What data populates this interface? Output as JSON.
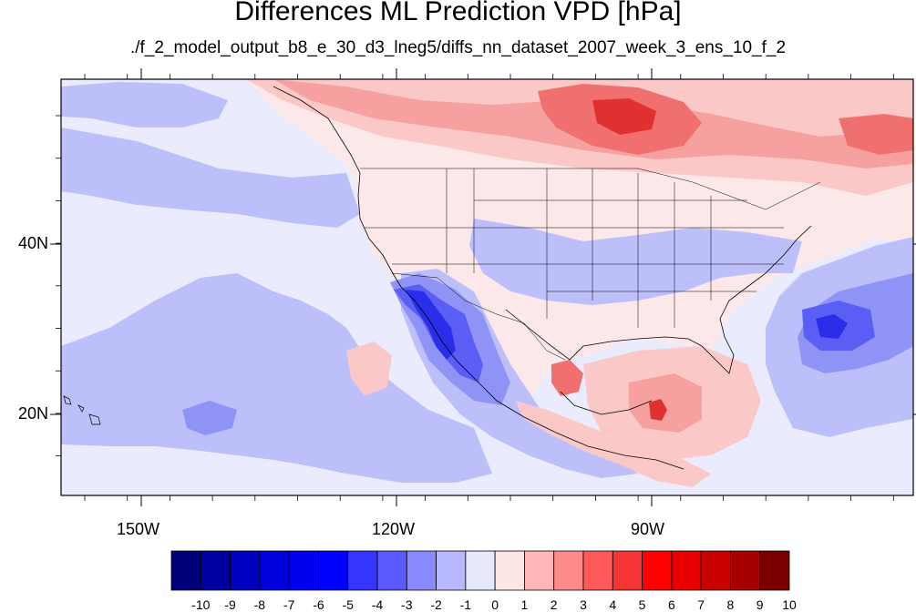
{
  "header": {
    "title": "Differences ML Prediction VPD [hPa]",
    "subtitle": "./f_2_model_output_b8_e_30_d3_lneg5/diffs_nn_dataset_2007_week_3_ens_10_f_2"
  },
  "axes": {
    "lat_labels": [
      "40N",
      "20N"
    ],
    "lon_labels": [
      "150W",
      "120W",
      "90W"
    ]
  },
  "colorbar": {
    "labels": [
      "-10",
      "-9",
      "-8",
      "-7",
      "-6",
      "-5",
      "-4",
      "-3",
      "-2",
      "-1",
      "0",
      "1",
      "2",
      "3",
      "4",
      "5",
      "6",
      "7",
      "8",
      "9",
      "10"
    ],
    "colors": [
      "#00007a",
      "#0000a0",
      "#0000c0",
      "#0000dc",
      "#0000f0",
      "#0000ff",
      "#3535ff",
      "#5a5aff",
      "#8a8aff",
      "#b8b8ff",
      "#e6e8fb",
      "#fde6e6",
      "#ffb6b6",
      "#ff8a8a",
      "#ff5a5a",
      "#f53535",
      "#ff0000",
      "#e60000",
      "#c80000",
      "#a60000",
      "#7a0000"
    ]
  },
  "palette": {
    "ocean_base": "#eaebfc",
    "land_base": "#fce8e8",
    "light_blue": "#bcbffa",
    "mid_blue": "#8f93f5",
    "strong_blue": "#5a5ef5",
    "deep_blue": "#2a2ee8",
    "light_red": "#fbc8c8",
    "mid_red": "#f6a0a0",
    "strong_red": "#f07070",
    "deep_red": "#e03030"
  }
}
